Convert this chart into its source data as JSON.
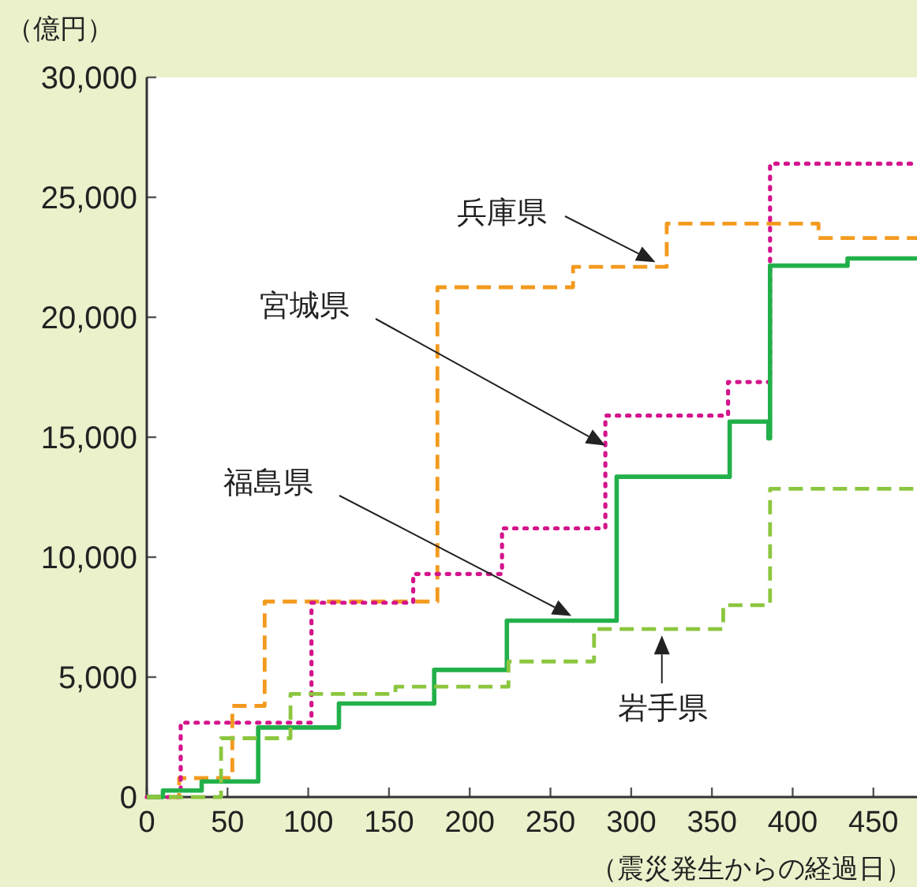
{
  "chart_data": {
    "type": "step",
    "ylabel": "（億円）",
    "xlabel": "（震災発生からの経過日）",
    "xlim": [
      0,
      477
    ],
    "xticks": [
      0,
      50,
      100,
      150,
      200,
      250,
      300,
      350,
      400,
      450
    ],
    "ylim": [
      0,
      30000
    ],
    "yticks": [
      {
        "value": 0,
        "label": "0"
      },
      {
        "value": 5000,
        "label": "5,000"
      },
      {
        "value": 10000,
        "label": "10,000"
      },
      {
        "value": 15000,
        "label": "15,000"
      },
      {
        "value": 20000,
        "label": "20,000"
      },
      {
        "value": 25000,
        "label": "25,000"
      },
      {
        "value": 30000,
        "label": "30,000"
      }
    ],
    "grid": false,
    "series": [
      {
        "color": "#f39a1e",
        "line_style": "dashed",
        "x": [
          0,
          20,
          53,
          73,
          180,
          264,
          322,
          416,
          477
        ],
        "values": [
          0,
          790,
          3800,
          8150,
          21250,
          22100,
          23900,
          23300,
          23300
        ]
      },
      {
        "color": "#d4148c",
        "line_style": "dotted",
        "x": [
          0,
          21,
          102,
          165,
          220,
          284,
          360,
          386,
          477
        ],
        "values": [
          0,
          3100,
          8100,
          9300,
          11200,
          15900,
          17300,
          26400,
          26400
        ]
      },
      {
        "color": "#22b04a",
        "line_style": "solid",
        "x": [
          0,
          10,
          34,
          69,
          119,
          178,
          223,
          291,
          361,
          385,
          386,
          434,
          477
        ],
        "values": [
          0,
          270,
          650,
          2900,
          3900,
          5300,
          7350,
          13350,
          15650,
          14950,
          22150,
          22450,
          22450
        ]
      },
      {
        "color": "#8cc63f",
        "line_style": "dashed",
        "x": [
          0,
          46,
          89,
          154,
          224,
          277,
          357,
          386,
          477
        ],
        "values": [
          0,
          2450,
          4300,
          4600,
          5650,
          7000,
          8000,
          12850,
          12850
        ]
      }
    ],
    "annotations": [
      "兵庫県",
      "宮城県",
      "福島県",
      "岩手県"
    ]
  }
}
